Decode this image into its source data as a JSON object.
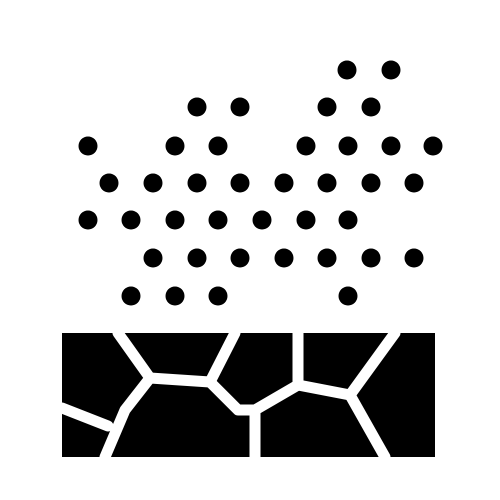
{
  "icon": {
    "name": "soil-particles-icon",
    "fill_color": "#000000",
    "background_color": "#ffffff",
    "particle_count": 40
  }
}
